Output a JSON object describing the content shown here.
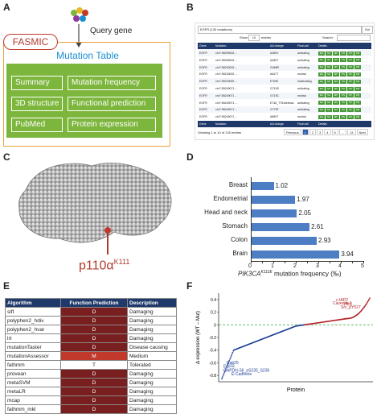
{
  "panels": {
    "a": "A",
    "b": "B",
    "c": "C",
    "d": "D",
    "e": "E",
    "f": "F"
  },
  "panel_a": {
    "query_gene": "Query gene",
    "fasmic": "FASMIC",
    "mutation_table": "Mutation Table",
    "buttons": [
      "Summary",
      "Mutation frequency",
      "3D structure",
      "Functional prediction",
      "PubMed",
      "Protein expression"
    ]
  },
  "panel_b": {
    "search_value": "EGFR (130 mutations)",
    "go": "Go!",
    "show": "Show",
    "entries_select": "10",
    "entries": "entries",
    "search_label": "Search:",
    "headers": [
      "Gene",
      "Mutation",
      "AA change",
      "Final call",
      "Details"
    ],
    "rows": [
      [
        "EGFR",
        "chr7:55259515 ...",
        "A289V",
        "activating"
      ],
      [
        "EGFR",
        "chr7:55259515 ...",
        "A289T",
        "activating"
      ],
      [
        "EGFR",
        "chr7:55233092 ...",
        "G465R",
        "activating"
      ],
      [
        "EGFR",
        "chr7:55233092 ...",
        "A647T",
        "neutral"
      ],
      [
        "EGFR",
        "chr7:55233092 ...",
        "E709K",
        "inactivating"
      ],
      [
        "EGFR",
        "chr7:55249071 ...",
        "G719S",
        "activating"
      ],
      [
        "EGFR",
        "chr7:55249071 ...",
        "G719C",
        "neutral"
      ],
      [
        "EGFR",
        "chr7:55249071 ...",
        "E746_T751delinsA",
        "activating"
      ],
      [
        "EGFR",
        "chr7:55249071 ...",
        "G779F",
        "activating"
      ],
      [
        "EGFR",
        "chr7:55249071 ...",
        "A859T",
        "neutral"
      ]
    ],
    "detail_tags": [
      "MA",
      "SS",
      "MP",
      "PS",
      "PP",
      "PM"
    ],
    "showing": "Showing 1 to 10 of 130 entries",
    "pagination": [
      "Previous",
      "1",
      "2",
      "3",
      "4",
      "5",
      "...",
      "13",
      "Next"
    ]
  },
  "panel_c": {
    "label_base": "p110α",
    "label_sup": "K111"
  },
  "panel_d": {
    "xlabel_gene": "PIK3CA",
    "xlabel_sup": "K111E",
    "xlabel_rest": " mutation frequency (‰)"
  },
  "chart_data": [
    {
      "type": "bar",
      "orientation": "horizontal",
      "categories": [
        "Breast",
        "Endometrial",
        "Head and neck",
        "Stomach",
        "Colon",
        "Brain"
      ],
      "values": [
        1.02,
        1.97,
        2.05,
        2.61,
        2.93,
        3.94
      ],
      "xlabel": "PIK3CA K111E mutation frequency (‰)",
      "xlim": [
        0,
        5
      ],
      "xticks": [
        "0",
        "0.5",
        "1",
        "1.5",
        "2",
        "2.5",
        "3",
        "3.5",
        "4",
        "4.5",
        "5"
      ],
      "grid": false
    },
    {
      "type": "scatter",
      "xlabel": "Protein",
      "ylabel": "Δ expression (WT – Mut)",
      "yticks": [
        "-0.8",
        "-0.6",
        "-0.4",
        "-0.2",
        "0",
        "0.2",
        "0.4"
      ],
      "ylim": [
        -0.9,
        0.5
      ],
      "annotations_high": [
        "c-IAP2",
        "Caveolin-1",
        "PKC",
        "Src_pY527"
      ],
      "annotations_low": [
        "Rab25",
        "EGFR",
        "GAPDH-S6_pS235_S236",
        "E-Cadherin"
      ]
    }
  ],
  "panel_e": {
    "headers": [
      "Algorithm",
      "Function Prediction",
      "Description"
    ],
    "rows": [
      [
        "sift",
        "D",
        "Damaging"
      ],
      [
        "polyphen2_hdiv",
        "D",
        "Damaging"
      ],
      [
        "polyphen2_hvar",
        "D",
        "Damaging"
      ],
      [
        "lrt",
        "D",
        "Damaging"
      ],
      [
        "mutationTaster",
        "D",
        "Disease causing"
      ],
      [
        "mutationAssessor",
        "M",
        "Medium"
      ],
      [
        "fathmm",
        "T",
        "Tolerated"
      ],
      [
        "provean",
        "D",
        "Damaging"
      ],
      [
        "metaSVM",
        "D",
        "Damaging"
      ],
      [
        "metaLR",
        "D",
        "Damaging"
      ],
      [
        "mcap",
        "D",
        "Damaging"
      ],
      [
        "fathmm_mkl",
        "D",
        "Damaging"
      ]
    ]
  },
  "colors": {
    "accent_green": "#7db63d",
    "navy": "#1f3a6a",
    "bar_blue": "#4d7ec4",
    "dark_red": "#7a1f1f",
    "red": "#c0392b"
  }
}
